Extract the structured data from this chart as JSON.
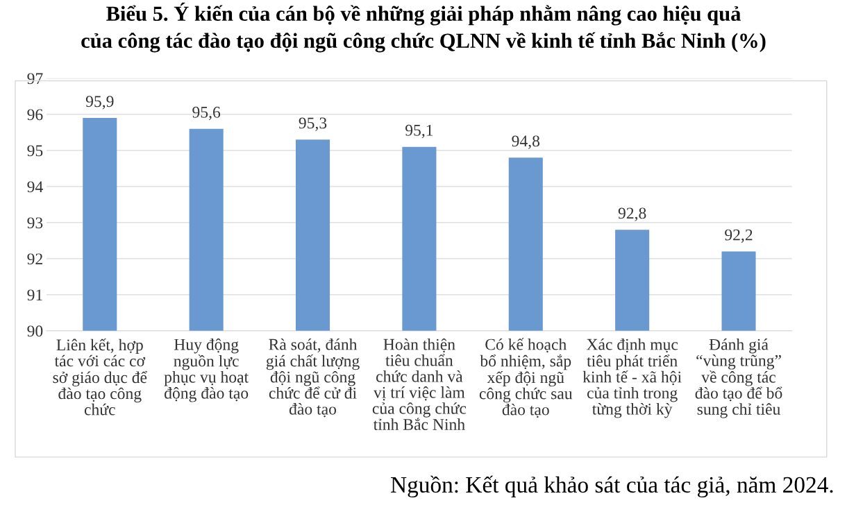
{
  "chart_data": {
    "type": "bar",
    "title": "Biểu 5. Ý kiến của cán bộ về những giải pháp nhằm nâng cao hiệu quả\ncủa công tác đào tạo đội ngũ công chức QLNN về kinh tế tỉnh Bắc Ninh (%)",
    "categories": [
      "Liên kết, hợp\ntác với các cơ\nsở giáo dục để\nđào tạo công\nchức",
      "Huy động\nnguồn lực\nphục vụ hoạt\nđộng đào tạo",
      "Rà soát, đánh\ngiá chất lượng\nđội ngũ công\nchức để cử đi\nđào tạo",
      "Hoàn thiện\ntiêu chuẩn\nchức danh và\nvị trí việc làm\ncủa công chức\ntỉnh Bắc Ninh",
      "Có kế hoạch\nbổ nhiệm, sắp\nxếp đội ngũ\ncông chức sau\nđào tạo",
      "Xác định mục\ntiêu phát triển\nkinh tế - xã hội\ncủa tỉnh trong\ntừng thời kỳ",
      "Đánh giá\n“vùng trũng”\nvề công tác\nđào tạo để bổ\nsung chỉ tiêu"
    ],
    "values": [
      95.9,
      95.6,
      95.3,
      95.1,
      94.8,
      92.8,
      92.2
    ],
    "value_labels": [
      "95,9",
      "95,6",
      "95,3",
      "95,1",
      "94,8",
      "92,8",
      "92,2"
    ],
    "color": "#6a98d0",
    "ylim": [
      90,
      97
    ],
    "yticks": [
      90,
      91,
      92,
      93,
      94,
      95,
      96,
      97
    ],
    "grid": "y",
    "annotations": [
      "Nguồn: Kết quả khảo sát của tác giả, năm 2024."
    ]
  }
}
